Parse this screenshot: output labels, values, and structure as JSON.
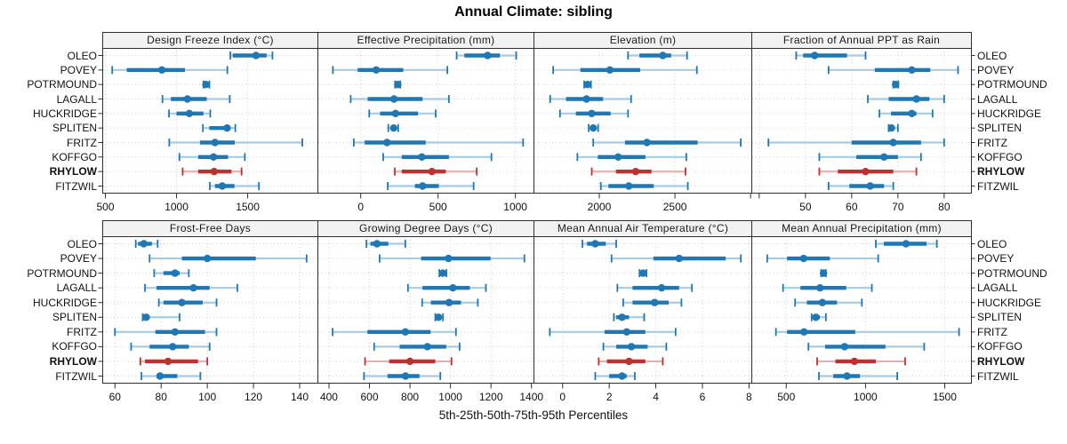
{
  "chart_data": {
    "type": "scatter",
    "variant": "percentile dotplot (5-number summary per station), lattice-style, 2x4 panels, free x scales",
    "title": "Annual Climate: sibling",
    "caption": "5th-25th-50th-75th-95th Percentiles",
    "stations": [
      "OLEO",
      "POVEY",
      "POTRMOUND",
      "LAGALL",
      "HUCKRIDGE",
      "SPLITEN",
      "FRITZ",
      "KOFFGO",
      "RHYLOW",
      "FITZWIL"
    ],
    "highlight_station": "RHYLOW",
    "colors": {
      "series_blue": "#1f77b4",
      "series_blue_light": "#a6cbe3",
      "highlight_red": "#bf3030",
      "highlight_red_light": "#e2b0b0",
      "grid": "#cfcfcf",
      "panel_border": "#2f2f2f",
      "strip_bg": "#f2f2f2"
    },
    "legend_position": "none",
    "grid": "dotted horizontal row guides and dotted vertical gridlines at ticks",
    "panels": [
      {
        "title": "Design Freeze Index (°C)",
        "xlim": [
          478,
          1990
        ],
        "ticks": [
          500,
          1000,
          1500
        ],
        "extra_unlabeled_ticks": [],
        "percentiles": [
          [
            1378,
            1395,
            1558,
            1633,
            1674
          ],
          [
            548,
            650,
            897,
            1059,
            1357
          ],
          [
            1189,
            1197,
            1206,
            1218,
            1231
          ],
          [
            901,
            960,
            1076,
            1212,
            1374
          ],
          [
            947,
            1000,
            1090,
            1189,
            1237
          ],
          [
            1185,
            1230,
            1355,
            1380,
            1413
          ],
          [
            949,
            1165,
            1270,
            1409,
            1884
          ],
          [
            1020,
            1152,
            1260,
            1362,
            1480
          ],
          [
            1043,
            1152,
            1264,
            1386,
            1457
          ],
          [
            1234,
            1270,
            1321,
            1407,
            1579
          ]
        ]
      },
      {
        "title": "Effective Precipitation (mm)",
        "xlim": [
          -280,
          1117
        ],
        "ticks": [
          0,
          500,
          1000
        ],
        "extra_unlabeled_ticks": [],
        "percentiles": [
          [
            620,
            670,
            820,
            900,
            1005
          ],
          [
            -180,
            -20,
            100,
            275,
            560
          ],
          [
            222,
            232,
            240,
            248,
            256
          ],
          [
            -65,
            45,
            215,
            400,
            570
          ],
          [
            55,
            125,
            225,
            370,
            485
          ],
          [
            178,
            195,
            213,
            228,
            242
          ],
          [
            -45,
            25,
            170,
            420,
            1050
          ],
          [
            145,
            265,
            395,
            570,
            845
          ],
          [
            220,
            265,
            460,
            550,
            750
          ],
          [
            175,
            350,
            400,
            505,
            730
          ]
        ]
      },
      {
        "title": "Elevation (m)",
        "xlim": [
          1565,
          3005
        ],
        "ticks": [
          2000,
          2500
        ],
        "extra_unlabeled_ticks": [
          3000
        ],
        "percentiles": [
          [
            2190,
            2265,
            2420,
            2475,
            2580
          ],
          [
            1695,
            1875,
            2070,
            2270,
            2645
          ],
          [
            1900,
            1912,
            1922,
            1933,
            1945
          ],
          [
            1675,
            1780,
            1915,
            2025,
            2210
          ],
          [
            1740,
            1845,
            1950,
            2075,
            2190
          ],
          [
            1930,
            1945,
            1960,
            1975,
            1992
          ],
          [
            1960,
            2170,
            2315,
            2650,
            2935
          ],
          [
            1855,
            1990,
            2125,
            2305,
            2575
          ],
          [
            1950,
            2110,
            2240,
            2345,
            2570
          ],
          [
            2010,
            2060,
            2195,
            2360,
            2585
          ]
        ]
      },
      {
        "title": "Fraction of Annual PPT as Rain",
        "xlim": [
          38.3,
          85.8
        ],
        "ticks": [
          50,
          60,
          70,
          80
        ],
        "extra_unlabeled_ticks": [
          40
        ],
        "percentiles": [
          [
            48,
            49.5,
            52,
            59,
            63
          ],
          [
            55,
            65,
            73,
            77,
            83
          ],
          [
            69,
            69.3,
            69.5,
            69.8,
            70.1
          ],
          [
            63.5,
            68,
            74,
            76.8,
            80
          ],
          [
            66,
            68.5,
            73,
            74,
            77.5
          ],
          [
            68,
            68.3,
            68.6,
            69.2,
            70
          ],
          [
            42,
            60,
            69,
            75,
            80
          ],
          [
            53,
            61,
            67,
            70,
            75
          ],
          [
            53,
            57,
            63,
            69,
            74
          ],
          [
            55,
            59.5,
            64,
            67,
            69
          ]
        ]
      },
      {
        "title": "Frost-Free Days",
        "xlim": [
          54.5,
          147.7
        ],
        "ticks": [
          60,
          80,
          100,
          120,
          140
        ],
        "extra_unlabeled_ticks": [],
        "percentiles": [
          [
            69,
            70,
            72.5,
            76,
            78.5
          ],
          [
            75,
            89,
            100,
            121,
            143
          ],
          [
            77,
            81,
            86,
            88,
            92
          ],
          [
            73,
            78,
            94,
            101,
            113
          ],
          [
            79,
            81,
            89,
            98,
            104
          ],
          [
            72,
            72.5,
            73.5,
            75,
            88
          ],
          [
            60,
            77.5,
            86,
            99,
            104
          ],
          [
            67,
            75,
            85,
            92,
            101
          ],
          [
            71,
            73,
            83,
            96,
            100
          ],
          [
            71.5,
            78,
            79.5,
            87,
            97
          ]
        ]
      },
      {
        "title": "Growing Degree Days (°C)",
        "xlim": [
          343,
          1410
        ],
        "ticks": [
          400,
          600,
          800,
          1000,
          1200,
          1400
        ],
        "extra_unlabeled_ticks": [],
        "percentiles": [
          [
            585,
            605,
            637,
            693,
            777
          ],
          [
            650,
            855,
            990,
            1198,
            1365
          ],
          [
            945,
            953,
            962,
            971,
            980
          ],
          [
            790,
            862,
            1012,
            1096,
            1175
          ],
          [
            860,
            903,
            993,
            1052,
            1135
          ],
          [
            925,
            933,
            941,
            951,
            963
          ],
          [
            418,
            590,
            777,
            902,
            1027
          ],
          [
            623,
            749,
            886,
            979,
            1045
          ],
          [
            578,
            697,
            800,
            925,
            1005
          ],
          [
            573,
            689,
            778,
            847,
            950
          ]
        ]
      },
      {
        "title": "Mean Annual Air Temperature (°C)",
        "xlim": [
          -1.25,
          8.1
        ],
        "ticks": [
          0,
          2,
          4,
          6,
          8
        ],
        "extra_unlabeled_ticks": [],
        "percentiles": [
          [
            0.85,
            1.05,
            1.4,
            1.85,
            2.3
          ],
          [
            2.1,
            3.9,
            5.0,
            7.0,
            7.65
          ],
          [
            3.3,
            3.37,
            3.45,
            3.53,
            3.6
          ],
          [
            2.35,
            3.0,
            4.25,
            5.0,
            5.55
          ],
          [
            2.6,
            3.0,
            3.95,
            4.55,
            5.1
          ],
          [
            2.2,
            2.3,
            2.55,
            2.85,
            3.5
          ],
          [
            -0.55,
            1.8,
            2.75,
            3.55,
            4.85
          ],
          [
            1.75,
            2.3,
            2.95,
            3.65,
            4.45
          ],
          [
            1.55,
            1.9,
            2.85,
            3.55,
            4.3
          ],
          [
            1.4,
            2.0,
            2.55,
            2.75,
            3.1
          ]
        ]
      },
      {
        "title": "Mean Annual Precipitation (mm)",
        "xlim": [
          280,
          1665
        ],
        "ticks": [
          500,
          1000,
          1500
        ],
        "extra_unlabeled_ticks": [],
        "percentiles": [
          [
            1065,
            1115,
            1255,
            1385,
            1450
          ],
          [
            380,
            505,
            610,
            775,
            1080
          ],
          [
            720,
            727,
            735,
            742,
            750
          ],
          [
            480,
            590,
            713,
            878,
            1040
          ],
          [
            556,
            630,
            728,
            820,
            977
          ],
          [
            660,
            668,
            687,
            712,
            750
          ],
          [
            435,
            505,
            612,
            935,
            1590
          ],
          [
            640,
            745,
            868,
            1126,
            1370
          ],
          [
            695,
            810,
            930,
            1065,
            1250
          ],
          [
            706,
            797,
            883,
            965,
            1200
          ]
        ]
      }
    ]
  }
}
